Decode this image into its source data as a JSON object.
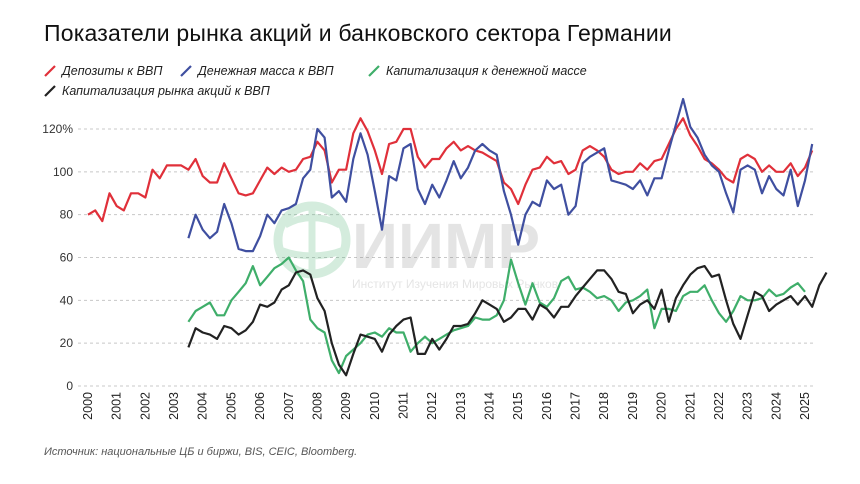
{
  "title": "Показатели рынка акций и банковского сектора Германии",
  "source": "Источник: национальные ЦБ и биржи, BIS, CEIC, Bloomberg.",
  "watermark": {
    "logo": "ИИМР",
    "subtitle": "Институт Изучения Мировых Рынков"
  },
  "chart_data": {
    "type": "line",
    "title": "Показатели рынка акций и банковского сектора Германии",
    "ylim": [
      0,
      120
    ],
    "xlim": [
      2000,
      2025.25
    ],
    "yticks": [
      "0",
      "20",
      "40",
      "60",
      "80",
      "100",
      "120%"
    ],
    "xticks": [
      "2000",
      "2001",
      "2002",
      "2003",
      "2004",
      "2005",
      "2006",
      "2007",
      "2008",
      "2009",
      "2010",
      "2011",
      "2012",
      "2013",
      "2014",
      "2015",
      "2016",
      "2017",
      "2018",
      "2019",
      "2020",
      "2021",
      "2022",
      "2023",
      "2024",
      "2025"
    ],
    "grid": "horizontal dashed",
    "legend": "top",
    "series": [
      {
        "name": "Депозиты к ВВП",
        "color": "#e0303a",
        "start": 2000,
        "step": 0.25,
        "values": [
          80,
          82,
          77,
          90,
          84,
          82,
          90,
          90,
          88,
          101,
          97,
          103,
          103,
          103,
          101,
          106,
          98,
          95,
          95,
          104,
          97,
          90,
          89,
          90,
          96,
          102,
          99,
          102,
          100,
          101,
          106,
          107,
          114,
          110,
          95,
          101,
          101,
          118,
          125,
          119,
          110,
          99,
          113,
          114,
          120,
          120,
          107,
          102,
          106,
          106,
          111,
          114,
          110,
          112,
          110,
          109,
          107,
          105,
          95,
          92,
          85,
          94,
          101,
          102,
          107,
          104,
          105,
          99,
          101,
          110,
          112,
          110,
          107,
          101,
          99,
          100,
          100,
          104,
          101,
          105,
          106,
          113,
          120,
          125,
          117,
          112,
          106,
          104,
          101,
          97,
          95,
          106,
          108,
          106,
          100,
          103,
          100,
          100,
          104,
          98,
          102,
          110
        ]
      },
      {
        "name": "Денежная масса к ВВП",
        "color": "#3f4fa0",
        "start": 2003.5,
        "step": 0.25,
        "values": [
          69,
          80,
          73,
          69,
          72,
          85,
          76,
          64,
          63,
          63,
          70,
          80,
          76,
          82,
          83,
          85,
          97,
          101,
          120,
          116,
          88,
          91,
          86,
          106,
          118,
          108,
          91,
          73,
          98,
          96,
          111,
          113,
          92,
          85,
          94,
          88,
          96,
          105,
          97,
          102,
          110,
          113,
          110,
          108,
          91,
          80,
          66,
          80,
          86,
          84,
          96,
          92,
          94,
          80,
          84,
          104,
          107,
          109,
          111,
          96,
          95,
          94,
          92,
          96,
          89,
          97,
          97,
          110,
          122,
          134,
          121,
          116,
          108,
          103,
          100,
          90,
          81,
          101,
          103,
          101,
          90,
          98,
          92,
          89,
          101,
          84,
          96,
          113
        ]
      },
      {
        "name": "Капитализация к денежной массе",
        "color": "#3fae6a",
        "start": 2003.5,
        "step": 0.25,
        "values": [
          30,
          35,
          37,
          39,
          33,
          33,
          40,
          44,
          48,
          56,
          47,
          51,
          55,
          57,
          60,
          54,
          49,
          31,
          27,
          25,
          12,
          6,
          14,
          17,
          20,
          24,
          25,
          23,
          27,
          25,
          25,
          16,
          20,
          23,
          20,
          22,
          24,
          26,
          27,
          28,
          32,
          31,
          31,
          33,
          40,
          59,
          48,
          38,
          48,
          39,
          37,
          41,
          49,
          51,
          45,
          46,
          44,
          41,
          42,
          40,
          35,
          39,
          40,
          42,
          45,
          27,
          36,
          36,
          35,
          42,
          44,
          44,
          47,
          40,
          34,
          30,
          35,
          42,
          40,
          40,
          41,
          45,
          42,
          43,
          46,
          48,
          44
        ]
      },
      {
        "name": "Капитализация рынка акций к ВВП",
        "color": "#222222",
        "start": 2003.5,
        "step": 0.25,
        "values": [
          18,
          27,
          25,
          24,
          22,
          28,
          27,
          24,
          26,
          30,
          38,
          37,
          39,
          45,
          47,
          53,
          54,
          52,
          41,
          35,
          20,
          10,
          5,
          15,
          24,
          23,
          22,
          16,
          24,
          28,
          31,
          32,
          15,
          15,
          22,
          17,
          22,
          28,
          28,
          29,
          34,
          40,
          38,
          36,
          30,
          32,
          36,
          36,
          31,
          38,
          36,
          32,
          37,
          37,
          42,
          46,
          50,
          54,
          54,
          50,
          44,
          43,
          34,
          38,
          40,
          36,
          45,
          30,
          41,
          47,
          52,
          55,
          56,
          51,
          52,
          40,
          29,
          22,
          33,
          44,
          42,
          35,
          38,
          40,
          42,
          38,
          42,
          37,
          47,
          53
        ]
      }
    ]
  }
}
